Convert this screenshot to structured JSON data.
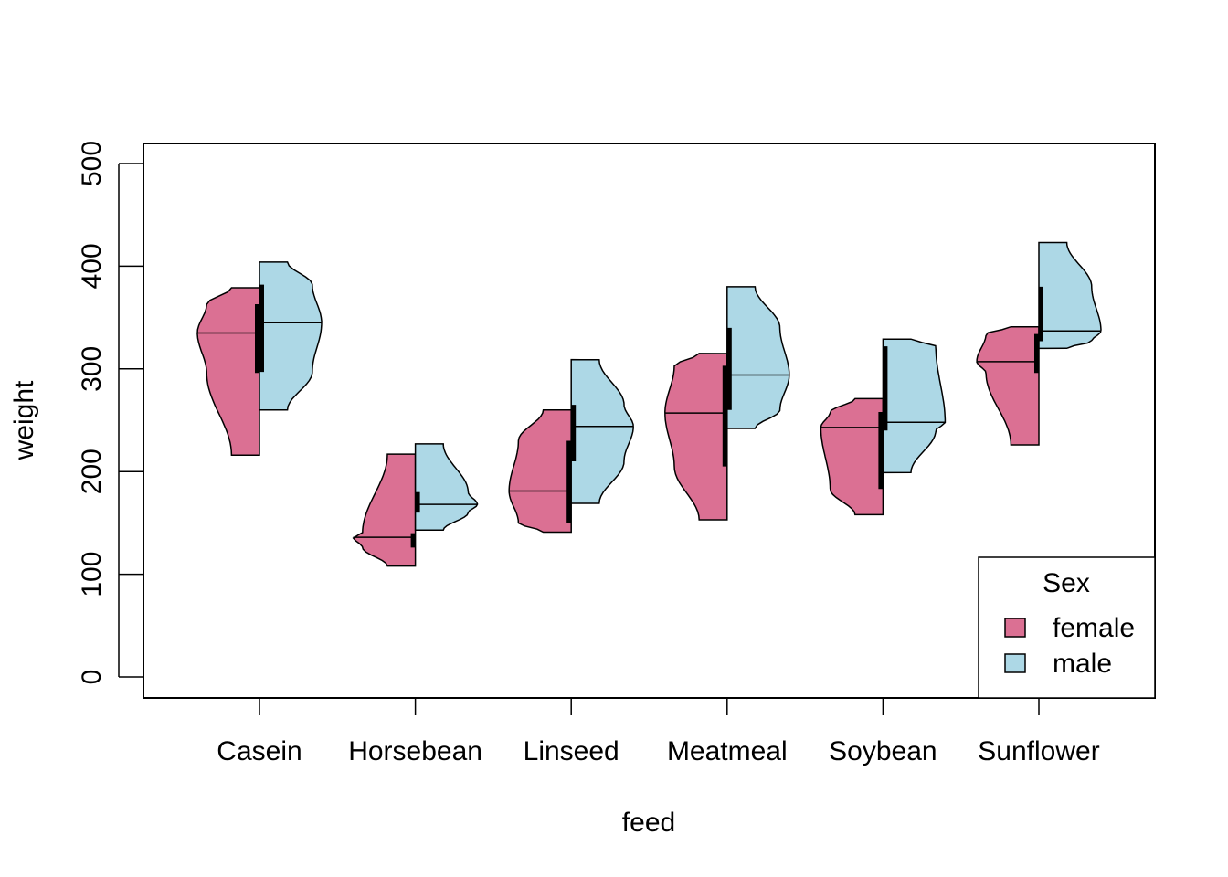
{
  "chart_data": {
    "type": "split-violin",
    "xlabel": "feed",
    "ylabel": "weight",
    "ylim": [
      0,
      500
    ],
    "yticks": [
      0,
      100,
      200,
      300,
      400,
      500
    ],
    "categories": [
      "Casein",
      "Horsebean",
      "Linseed",
      "Meatmeal",
      "Soybean",
      "Sunflower"
    ],
    "series": [
      {
        "name": "female",
        "color": "#DB7093",
        "min": [
          216,
          108,
          141,
          153,
          158,
          226
        ],
        "max": [
          379,
          217,
          260,
          315,
          271,
          341
        ],
        "median": [
          335,
          136,
          181,
          257,
          243,
          307
        ],
        "q1": [
          296,
          126,
          150,
          205,
          183,
          296
        ],
        "q3": [
          363,
          140,
          230,
          303,
          258,
          334
        ]
      },
      {
        "name": "male",
        "color": "#ADD8E6",
        "min": [
          260,
          143,
          169,
          242,
          199,
          320
        ],
        "max": [
          404,
          227,
          309,
          380,
          329,
          423
        ],
        "median": [
          345,
          168,
          244,
          294,
          248,
          337
        ],
        "q1": [
          297,
          160,
          210,
          260,
          240,
          327
        ],
        "q3": [
          382,
          180,
          265,
          340,
          322,
          380
        ]
      }
    ],
    "legend": {
      "title": "Sex",
      "position": "bottom-right",
      "items": [
        "female",
        "male"
      ]
    },
    "grid": false
  }
}
